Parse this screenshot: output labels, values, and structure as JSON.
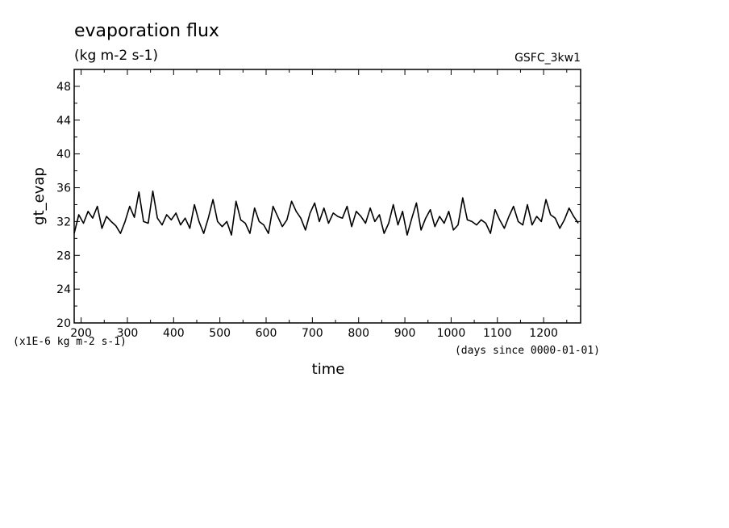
{
  "chart_data": {
    "type": "line",
    "title": "evaporation flux",
    "units": "(kg m-2 s-1)",
    "source": "GSFC_3kw1",
    "xlabel": "time",
    "ylabel": "gt_evap",
    "x_unit_note": "(days since 0000-01-01)",
    "y_unit_note": "(x1E-6 kg m-2 s-1)",
    "xlim": [
      185,
      1280
    ],
    "ylim": [
      20,
      50
    ],
    "x_ticks": [
      "200",
      "300",
      "400",
      "500",
      "600",
      "700",
      "800",
      "900",
      "1000",
      "1100",
      "1200"
    ],
    "y_ticks": [
      "20",
      "24",
      "28",
      "32",
      "36",
      "40",
      "44",
      "48"
    ],
    "grid": false,
    "series": [
      {
        "x": [
          185,
          195,
          205,
          215,
          225,
          235,
          245,
          255,
          265,
          275,
          285,
          295,
          305,
          315,
          325,
          335,
          345,
          355,
          365,
          375,
          385,
          395,
          405,
          415,
          425,
          435,
          445,
          455,
          465,
          475,
          485,
          495,
          505,
          515,
          525,
          535,
          545,
          555,
          565,
          575,
          585,
          595,
          605,
          615,
          625,
          635,
          645,
          655,
          665,
          675,
          685,
          695,
          705,
          715,
          725,
          735,
          745,
          755,
          765,
          775,
          785,
          795,
          805,
          815,
          825,
          835,
          845,
          855,
          865,
          875,
          885,
          895,
          905,
          915,
          925,
          935,
          945,
          955,
          965,
          975,
          985,
          995,
          1005,
          1015,
          1025,
          1035,
          1045,
          1055,
          1065,
          1075,
          1085,
          1095,
          1105,
          1115,
          1125,
          1135,
          1145,
          1155,
          1165,
          1175,
          1185,
          1195,
          1205,
          1215,
          1225,
          1235,
          1245,
          1255,
          1265,
          1275
        ],
        "values": [
          30.6,
          32.8,
          31.8,
          33.2,
          32.4,
          33.8,
          31.2,
          32.6,
          32.0,
          31.5,
          30.6,
          32.0,
          33.8,
          32.5,
          35.5,
          32.0,
          31.8,
          35.6,
          32.4,
          31.6,
          32.8,
          32.2,
          33.0,
          31.6,
          32.4,
          31.2,
          34.0,
          32.0,
          30.6,
          32.4,
          34.6,
          32.0,
          31.4,
          32.0,
          30.4,
          34.4,
          32.2,
          31.8,
          30.6,
          33.6,
          32.0,
          31.6,
          30.6,
          33.8,
          32.6,
          31.4,
          32.2,
          34.4,
          33.2,
          32.4,
          31.0,
          33.0,
          34.2,
          32.0,
          33.6,
          31.8,
          33.0,
          32.6,
          32.4,
          33.8,
          31.4,
          33.2,
          32.6,
          31.8,
          33.6,
          32.0,
          32.8,
          30.6,
          31.8,
          34.0,
          31.6,
          33.2,
          30.4,
          32.4,
          34.2,
          31.0,
          32.4,
          33.4,
          31.4,
          32.6,
          31.8,
          33.2,
          31.0,
          31.6,
          34.8,
          32.2,
          32.0,
          31.6,
          32.2,
          31.8,
          30.6,
          33.4,
          32.2,
          31.2,
          32.6,
          33.8,
          32.0,
          31.6,
          34.0,
          31.6,
          32.6,
          32.0,
          34.6,
          32.8,
          32.4,
          31.2,
          32.2,
          33.6,
          32.6,
          31.8
        ]
      }
    ]
  }
}
